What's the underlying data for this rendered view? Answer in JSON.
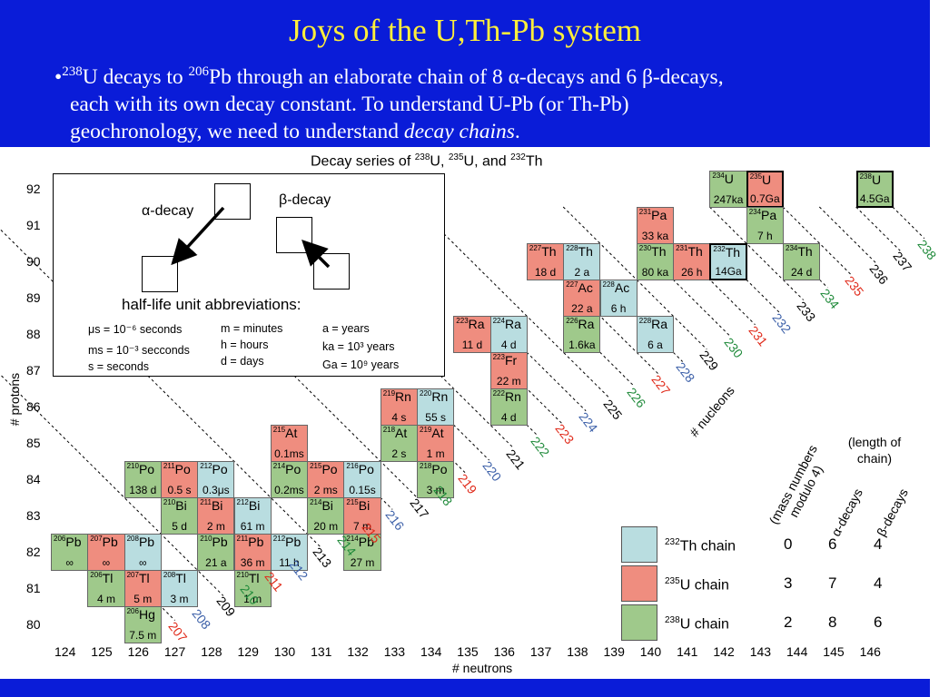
{
  "slide": {
    "title": "Joys of the U,Th-Pb system",
    "bullet": {
      "line1_pre": "•",
      "line1_sup1": "238",
      "line1_mid1": "U decays to ",
      "line1_sup2": "206",
      "line1_mid2": "Pb through an elaborate chain of 8 α-decays and 6 β-decays,",
      "line2": "each with its own decay constant.  To understand U-Pb (or Th-Pb)",
      "line3_pre": "geochronology, we need to understand ",
      "line3_em": "decay chains",
      "line3_post": "."
    }
  },
  "chart_title": {
    "pre": "Decay series of ",
    "s1": "238",
    "t1": "U, ",
    "s2": "235",
    "t2": "U, and ",
    "s3": "232",
    "t3": "Th"
  },
  "axes": {
    "ylabel": "# protons",
    "xlabel": "# neutrons",
    "proton_ticks": [
      "92",
      "91",
      "90",
      "89",
      "88",
      "87",
      "86",
      "85",
      "84",
      "83",
      "82",
      "81",
      "80"
    ],
    "neutron_ticks": [
      "124",
      "125",
      "126",
      "127",
      "128",
      "129",
      "130",
      "131",
      "132",
      "133",
      "134",
      "135",
      "136",
      "137",
      "138",
      "139",
      "140",
      "141",
      "142",
      "143",
      "144",
      "145",
      "146"
    ]
  },
  "legend": {
    "alpha_label": "α-decay",
    "beta_label": "β-decay",
    "units_heading": "half-life unit abbreviations:",
    "u1": "μs = 10⁻⁶ seconds",
    "u2": "ms = 10⁻³ secconds",
    "u3": "s = seconds",
    "u4": "m = minutes",
    "u5": "h = hours",
    "u6": "d = days",
    "u7": "a = years",
    "u8": "ka = 10³ years",
    "u9": "Ga = 10⁹ years"
  },
  "colors": {
    "th232": "#b9dde0",
    "u235": "#ef8d7f",
    "u238": "#9fc98b",
    "mass_th232": "#3b5fa8",
    "mass_u235": "#e02a1a",
    "mass_u238": "#1f8a3a",
    "header": "#0a1cd8",
    "title": "#ffef3a"
  },
  "nuclides": [
    {
      "a": "234",
      "el": "U",
      "hl": "247ka",
      "n": 142,
      "z": 92,
      "c": "u238"
    },
    {
      "a": "235",
      "el": "U",
      "hl": "0.7Ga",
      "n": 143,
      "z": 92,
      "c": "u235",
      "bold": true
    },
    {
      "a": "238",
      "el": "U",
      "hl": "4.5Ga",
      "n": 146,
      "z": 92,
      "c": "u238",
      "bold": true
    },
    {
      "a": "231",
      "el": "Pa",
      "hl": "33 ka",
      "n": 140,
      "z": 91,
      "c": "u235"
    },
    {
      "a": "234",
      "el": "Pa",
      "hl": "7 h",
      "n": 143,
      "z": 91,
      "c": "u238"
    },
    {
      "a": "227",
      "el": "Th",
      "hl": "18 d",
      "n": 137,
      "z": 90,
      "c": "u235"
    },
    {
      "a": "228",
      "el": "Th",
      "hl": "2 a",
      "n": 138,
      "z": 90,
      "c": "th232"
    },
    {
      "a": "230",
      "el": "Th",
      "hl": "80 ka",
      "n": 140,
      "z": 90,
      "c": "u238"
    },
    {
      "a": "231",
      "el": "Th",
      "hl": "26 h",
      "n": 141,
      "z": 90,
      "c": "u235"
    },
    {
      "a": "232",
      "el": "Th",
      "hl": "14Ga",
      "n": 142,
      "z": 90,
      "c": "th232",
      "bold": true
    },
    {
      "a": "234",
      "el": "Th",
      "hl": "24 d",
      "n": 144,
      "z": 90,
      "c": "u238"
    },
    {
      "a": "227",
      "el": "Ac",
      "hl": "22 a",
      "n": 138,
      "z": 89,
      "c": "u235"
    },
    {
      "a": "228",
      "el": "Ac",
      "hl": "6 h",
      "n": 139,
      "z": 89,
      "c": "th232"
    },
    {
      "a": "223",
      "el": "Ra",
      "hl": "11 d",
      "n": 135,
      "z": 88,
      "c": "u235"
    },
    {
      "a": "224",
      "el": "Ra",
      "hl": "4 d",
      "n": 136,
      "z": 88,
      "c": "th232"
    },
    {
      "a": "226",
      "el": "Ra",
      "hl": "1.6ka",
      "n": 138,
      "z": 88,
      "c": "u238"
    },
    {
      "a": "228",
      "el": "Ra",
      "hl": "6 a",
      "n": 140,
      "z": 88,
      "c": "th232"
    },
    {
      "a": "223",
      "el": "Fr",
      "hl": "22 m",
      "n": 136,
      "z": 87,
      "c": "u235"
    },
    {
      "a": "219",
      "el": "Rn",
      "hl": "4 s",
      "n": 133,
      "z": 86,
      "c": "u235"
    },
    {
      "a": "220",
      "el": "Rn",
      "hl": "55 s",
      "n": 134,
      "z": 86,
      "c": "th232"
    },
    {
      "a": "222",
      "el": "Rn",
      "hl": "4 d",
      "n": 136,
      "z": 86,
      "c": "u238"
    },
    {
      "a": "215",
      "el": "At",
      "hl": "0.1ms",
      "n": 130,
      "z": 85,
      "c": "u235"
    },
    {
      "a": "218",
      "el": "At",
      "hl": "2 s",
      "n": 133,
      "z": 85,
      "c": "u238"
    },
    {
      "a": "219",
      "el": "At",
      "hl": "1 m",
      "n": 134,
      "z": 85,
      "c": "u235"
    },
    {
      "a": "210",
      "el": "Po",
      "hl": "138 d",
      "n": 126,
      "z": 84,
      "c": "u238"
    },
    {
      "a": "211",
      "el": "Po",
      "hl": "0.5 s",
      "n": 127,
      "z": 84,
      "c": "u235"
    },
    {
      "a": "212",
      "el": "Po",
      "hl": "0.3μs",
      "n": 128,
      "z": 84,
      "c": "th232"
    },
    {
      "a": "214",
      "el": "Po",
      "hl": "0.2ms",
      "n": 130,
      "z": 84,
      "c": "u238"
    },
    {
      "a": "215",
      "el": "Po",
      "hl": "2 ms",
      "n": 131,
      "z": 84,
      "c": "u235"
    },
    {
      "a": "216",
      "el": "Po",
      "hl": "0.15s",
      "n": 132,
      "z": 84,
      "c": "th232"
    },
    {
      "a": "218",
      "el": "Po",
      "hl": "3 m",
      "n": 134,
      "z": 84,
      "c": "u238"
    },
    {
      "a": "210",
      "el": "Bi",
      "hl": "5 d",
      "n": 127,
      "z": 83,
      "c": "u238"
    },
    {
      "a": "211",
      "el": "Bi",
      "hl": "2 m",
      "n": 128,
      "z": 83,
      "c": "u235"
    },
    {
      "a": "212",
      "el": "Bi",
      "hl": "61 m",
      "n": 129,
      "z": 83,
      "c": "th232"
    },
    {
      "a": "214",
      "el": "Bi",
      "hl": "20 m",
      "n": 131,
      "z": 83,
      "c": "u238"
    },
    {
      "a": "215",
      "el": "Bi",
      "hl": "7 m",
      "n": 132,
      "z": 83,
      "c": "u235"
    },
    {
      "a": "206",
      "el": "Pb",
      "hl": "∞",
      "n": 124,
      "z": 82,
      "c": "u238"
    },
    {
      "a": "207",
      "el": "Pb",
      "hl": "∞",
      "n": 125,
      "z": 82,
      "c": "u235"
    },
    {
      "a": "208",
      "el": "Pb",
      "hl": "∞",
      "n": 126,
      "z": 82,
      "c": "th232"
    },
    {
      "a": "210",
      "el": "Pb",
      "hl": "21 a",
      "n": 128,
      "z": 82,
      "c": "u238"
    },
    {
      "a": "211",
      "el": "Pb",
      "hl": "36 m",
      "n": 129,
      "z": 82,
      "c": "u235"
    },
    {
      "a": "212",
      "el": "Pb",
      "hl": "11 h",
      "n": 130,
      "z": 82,
      "c": "th232"
    },
    {
      "a": "214",
      "el": "Pb",
      "hl": "27 m",
      "n": 132,
      "z": 82,
      "c": "u238"
    },
    {
      "a": "206",
      "el": "Tl",
      "hl": "4 m",
      "n": 125,
      "z": 81,
      "c": "u238"
    },
    {
      "a": "207",
      "el": "Tl",
      "hl": "5 m",
      "n": 126,
      "z": 81,
      "c": "u235"
    },
    {
      "a": "208",
      "el": "Tl",
      "hl": "3 m",
      "n": 127,
      "z": 81,
      "c": "th232"
    },
    {
      "a": "210",
      "el": "Tl",
      "hl": "1 m",
      "n": 129,
      "z": 81,
      "c": "u238"
    },
    {
      "a": "206",
      "el": "Hg",
      "hl": "7.5 m",
      "n": 126,
      "z": 80,
      "c": "u238"
    }
  ],
  "mass_labels": [
    {
      "t": "238",
      "c": "u238"
    },
    {
      "t": "237",
      "c": "k"
    },
    {
      "t": "236",
      "c": "k"
    },
    {
      "t": "235",
      "c": "u235"
    },
    {
      "t": "234",
      "c": "u238"
    },
    {
      "t": "233",
      "c": "k"
    },
    {
      "t": "232",
      "c": "th232"
    },
    {
      "t": "231",
      "c": "u235"
    },
    {
      "t": "230",
      "c": "u238"
    },
    {
      "t": "229",
      "c": "k"
    },
    {
      "t": "228",
      "c": "th232"
    },
    {
      "t": "227",
      "c": "u235"
    },
    {
      "t": "226",
      "c": "u238"
    },
    {
      "t": "225",
      "c": "k"
    },
    {
      "t": "224",
      "c": "th232"
    },
    {
      "t": "223",
      "c": "u235"
    },
    {
      "t": "222",
      "c": "u238"
    },
    {
      "t": "221",
      "c": "k"
    },
    {
      "t": "220",
      "c": "th232"
    },
    {
      "t": "219",
      "c": "u235"
    },
    {
      "t": "218",
      "c": "u238"
    },
    {
      "t": "217",
      "c": "k"
    },
    {
      "t": "216",
      "c": "th232"
    },
    {
      "t": "215",
      "c": "u235"
    },
    {
      "t": "214",
      "c": "u238"
    },
    {
      "t": "213",
      "c": "k"
    },
    {
      "t": "212",
      "c": "th232"
    },
    {
      "t": "211",
      "c": "u235"
    },
    {
      "t": "210",
      "c": "u238"
    },
    {
      "t": "209",
      "c": "k"
    },
    {
      "t": "208",
      "c": "th232"
    },
    {
      "t": "207",
      "c": "u235"
    }
  ],
  "nucleons_label": "# nucleons",
  "table": {
    "head_mass": "(mass numbers modulo 4)",
    "head_len": "(length of chain)",
    "head_alpha": "α-decays",
    "head_beta": "β-decays",
    "rows": [
      {
        "sup": "232",
        "name": "Th chain",
        "mod": "0",
        "a": "6",
        "b": "4",
        "c": "th232"
      },
      {
        "sup": "235",
        "name": "U chain",
        "mod": "3",
        "a": "7",
        "b": "4",
        "c": "u235"
      },
      {
        "sup": "238",
        "name": "U chain",
        "mod": "2",
        "a": "8",
        "b": "6",
        "c": "u238"
      }
    ]
  }
}
